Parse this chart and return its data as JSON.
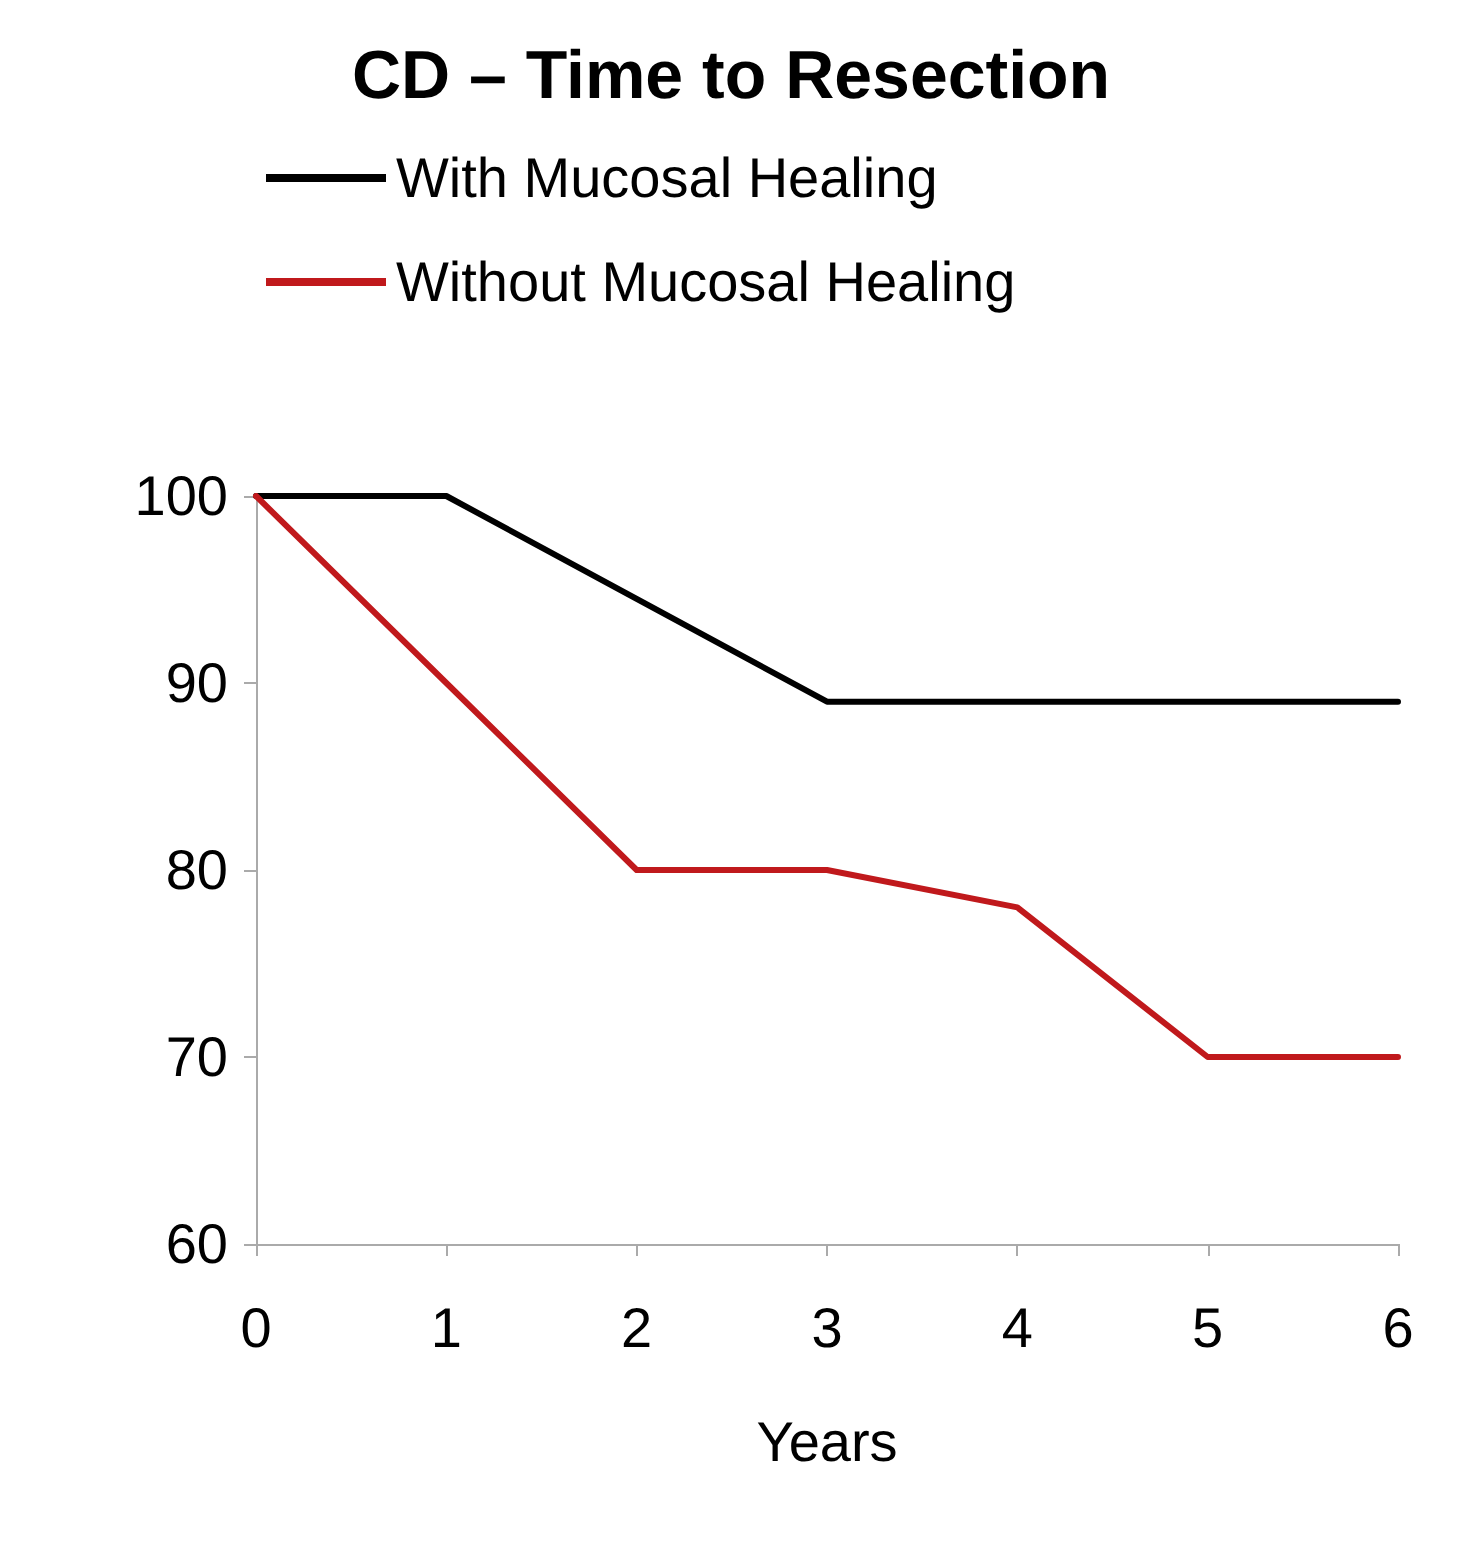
{
  "chart_data": {
    "type": "line",
    "title": "CD – Time to Resection",
    "xlabel": "Years",
    "x": [
      0,
      1,
      2,
      3,
      4,
      5,
      6
    ],
    "series": [
      {
        "name": "With Mucosal Healing",
        "color": "#000000",
        "values": [
          100,
          100,
          94.5,
          89,
          89,
          89,
          89
        ]
      },
      {
        "name": "Without Mucosal Healing",
        "color": "#c0191c",
        "values": [
          100,
          90,
          80,
          80,
          78,
          70,
          70
        ]
      }
    ],
    "xlim": [
      0,
      6
    ],
    "xticks": [
      0,
      1,
      2,
      3,
      4,
      5,
      6
    ],
    "ylim": [
      60,
      100
    ],
    "yticks": [
      60,
      70,
      80,
      90,
      100
    ],
    "grid": false,
    "legend": "top",
    "marker": "none",
    "line_style": "solid"
  }
}
